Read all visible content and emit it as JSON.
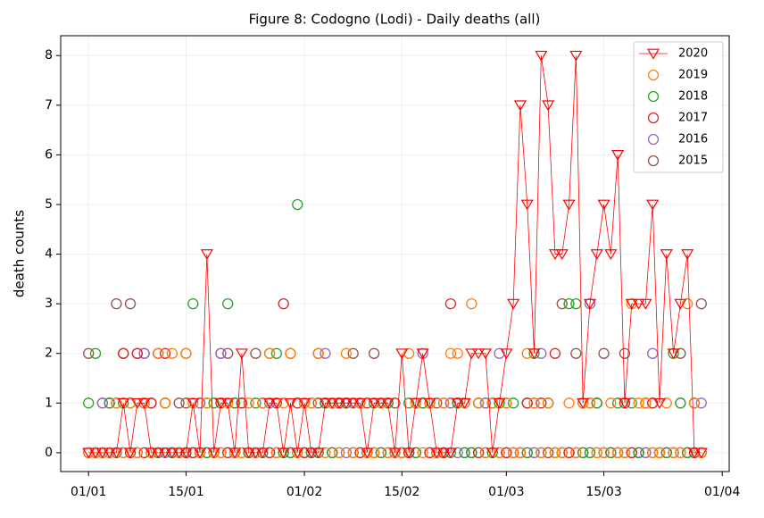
{
  "chart_data": {
    "type": "scatter",
    "title": "Figure 8: Codogno (Lodi) - Daily deaths (all)",
    "y_label": "death counts",
    "x": [
      "01/01",
      "02/01",
      "03/01",
      "04/01",
      "05/01",
      "06/01",
      "07/01",
      "08/01",
      "09/01",
      "10/01",
      "11/01",
      "12/01",
      "13/01",
      "14/01",
      "15/01",
      "16/01",
      "17/01",
      "18/01",
      "19/01",
      "20/01",
      "21/01",
      "22/01",
      "23/01",
      "24/01",
      "25/01",
      "26/01",
      "27/01",
      "28/01",
      "29/01",
      "30/01",
      "31/01",
      "01/02",
      "02/02",
      "03/02",
      "04/02",
      "05/02",
      "06/02",
      "07/02",
      "08/02",
      "09/02",
      "10/02",
      "11/02",
      "12/02",
      "13/02",
      "14/02",
      "15/02",
      "16/02",
      "17/02",
      "18/02",
      "19/02",
      "20/02",
      "21/02",
      "22/02",
      "23/02",
      "24/02",
      "25/02",
      "26/02",
      "27/02",
      "28/02",
      "29/02",
      "01/03",
      "02/03",
      "03/03",
      "04/03",
      "05/03",
      "06/03",
      "07/03",
      "08/03",
      "09/03",
      "10/03",
      "11/03",
      "12/03",
      "13/03",
      "14/03",
      "15/03",
      "16/03",
      "17/03",
      "18/03",
      "19/03",
      "20/03",
      "21/03",
      "22/03",
      "23/03",
      "24/03",
      "25/03",
      "26/03",
      "27/03",
      "28/03",
      "29/03"
    ],
    "series": [
      {
        "name": "2020",
        "color": "#ff0000",
        "marker": "triangle-down",
        "line": true,
        "values": [
          0,
          0,
          0,
          0,
          0,
          1,
          0,
          1,
          1,
          0,
          0,
          0,
          0,
          0,
          0,
          1,
          0,
          4,
          0,
          1,
          1,
          0,
          2,
          0,
          0,
          0,
          1,
          1,
          0,
          1,
          0,
          1,
          0,
          0,
          1,
          1,
          1,
          1,
          1,
          1,
          0,
          1,
          1,
          1,
          0,
          2,
          0,
          1,
          2,
          1,
          0,
          0,
          0,
          1,
          1,
          2,
          2,
          2,
          0,
          1,
          2,
          3,
          7,
          5,
          2,
          8,
          7,
          4,
          4,
          5,
          8,
          1,
          3,
          4,
          5,
          4,
          6,
          1,
          3,
          3,
          3,
          5,
          1,
          4,
          2,
          3,
          4,
          0,
          0
        ]
      },
      {
        "name": "2019",
        "color": "#ff7f0e",
        "marker": "circle",
        "line": false,
        "values": [
          0,
          0,
          0,
          0,
          1,
          0,
          1,
          0,
          1,
          0,
          2,
          1,
          2,
          0,
          2,
          1,
          0,
          1,
          0,
          0,
          1,
          0,
          0,
          1,
          0,
          1,
          2,
          0,
          1,
          2,
          0,
          1,
          1,
          2,
          0,
          1,
          0,
          2,
          0,
          1,
          0,
          0,
          1,
          0,
          0,
          0,
          2,
          1,
          0,
          1,
          0,
          1,
          2,
          2,
          1,
          3,
          1,
          0,
          1,
          0,
          1,
          0,
          0,
          2,
          1,
          0,
          1,
          0,
          0,
          1,
          0,
          1,
          1,
          0,
          0,
          1,
          0,
          0,
          3,
          1,
          1,
          0,
          0,
          1,
          0,
          0,
          3,
          1,
          0
        ]
      },
      {
        "name": "2018",
        "color": "#2ca02c",
        "marker": "circle",
        "line": false,
        "values": [
          1,
          2,
          0,
          1,
          0,
          1,
          1,
          0,
          1,
          0,
          0,
          1,
          0,
          0,
          2,
          3,
          0,
          0,
          1,
          0,
          3,
          1,
          0,
          0,
          1,
          0,
          2,
          2,
          0,
          0,
          5,
          1,
          0,
          0,
          1,
          0,
          0,
          1,
          0,
          1,
          0,
          1,
          0,
          1,
          0,
          0,
          1,
          0,
          1,
          1,
          0,
          1,
          0,
          1,
          0,
          0,
          1,
          0,
          0,
          1,
          1,
          1,
          0,
          0,
          2,
          0,
          1,
          0,
          0,
          3,
          3,
          0,
          0,
          1,
          0,
          0,
          1,
          0,
          1,
          0,
          1,
          0,
          0,
          0,
          2,
          1,
          0,
          1,
          0
        ]
      },
      {
        "name": "2017",
        "color": "#d62728",
        "marker": "circle",
        "line": false,
        "values": [
          0,
          0,
          0,
          1,
          1,
          2,
          0,
          2,
          0,
          1,
          2,
          2,
          0,
          0,
          0,
          0,
          0,
          1,
          0,
          1,
          0,
          0,
          1,
          0,
          0,
          1,
          0,
          0,
          3,
          0,
          1,
          0,
          0,
          2,
          1,
          0,
          1,
          1,
          0,
          0,
          1,
          0,
          0,
          1,
          0,
          0,
          0,
          1,
          1,
          0,
          0,
          0,
          3,
          1,
          1,
          0,
          0,
          0,
          1,
          0,
          0,
          0,
          0,
          1,
          1,
          1,
          0,
          2,
          0,
          0,
          0,
          1,
          0,
          1,
          0,
          0,
          0,
          1,
          0,
          0,
          1,
          1,
          0,
          0,
          0,
          0,
          0,
          0,
          0
        ]
      },
      {
        "name": "2016",
        "color": "#9467bd",
        "marker": "circle",
        "line": false,
        "values": [
          0,
          0,
          1,
          0,
          0,
          0,
          1,
          0,
          2,
          0,
          0,
          0,
          0,
          0,
          0,
          0,
          1,
          0,
          0,
          2,
          0,
          0,
          1,
          0,
          0,
          0,
          1,
          0,
          0,
          0,
          0,
          0,
          0,
          0,
          2,
          0,
          0,
          0,
          1,
          0,
          0,
          0,
          0,
          0,
          0,
          0,
          0,
          0,
          2,
          1,
          0,
          0,
          1,
          0,
          0,
          0,
          0,
          1,
          0,
          2,
          0,
          0,
          0,
          0,
          0,
          2,
          1,
          0,
          0,
          0,
          0,
          0,
          3,
          0,
          0,
          0,
          0,
          0,
          0,
          0,
          0,
          2,
          0,
          0,
          0,
          1,
          0,
          0,
          1
        ]
      },
      {
        "name": "2015",
        "color": "#8c564b",
        "marker": "circle",
        "line": false,
        "values": [
          2,
          0,
          1,
          1,
          3,
          2,
          3,
          2,
          2,
          1,
          2,
          1,
          0,
          1,
          1,
          0,
          1,
          0,
          0,
          2,
          2,
          1,
          1,
          0,
          2,
          1,
          0,
          1,
          0,
          2,
          1,
          0,
          1,
          1,
          1,
          1,
          1,
          1,
          2,
          1,
          0,
          2,
          1,
          0,
          1,
          0,
          0,
          0,
          1,
          0,
          1,
          0,
          1,
          1,
          0,
          0,
          1,
          1,
          1,
          1,
          0,
          0,
          0,
          1,
          0,
          0,
          1,
          0,
          3,
          0,
          2,
          0,
          1,
          1,
          2,
          0,
          0,
          2,
          0,
          0,
          0,
          1,
          0,
          0,
          0,
          2,
          0,
          1,
          3
        ]
      }
    ],
    "xlim": [
      "28/12",
      "02/04"
    ],
    "xticks": [
      "01/01",
      "15/01",
      "01/02",
      "15/02",
      "01/03",
      "15/03",
      "01/04"
    ],
    "ylim": [
      -0.38,
      8.4
    ],
    "yticks": [
      0,
      1,
      2,
      3,
      4,
      5,
      6,
      7,
      8
    ],
    "grid": true,
    "legend": "upper right"
  }
}
